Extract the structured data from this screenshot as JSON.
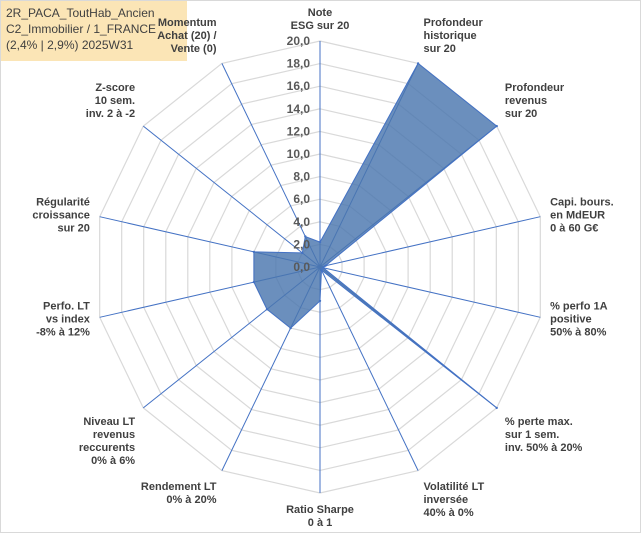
{
  "info_box": {
    "line1": "2R_PACA_ToutHab_Ancien",
    "line2": "C2_Immobilier / 1_FRANCE",
    "line3": "(2,4% | 2,9%) 2025W31"
  },
  "chart_data": {
    "type": "radar",
    "title": "",
    "rmin": 0,
    "rmax": 20,
    "tick_step": 2,
    "tick_labels": [
      "0,0",
      "2,0",
      "4,0",
      "6,0",
      "8,0",
      "10,0",
      "12,0",
      "14,0",
      "16,0",
      "18,0",
      "20,0"
    ],
    "axes": [
      [
        "Note",
        "ESG sur 20"
      ],
      [
        "Profondeur",
        "historique",
        "sur 20"
      ],
      [
        "Profondeur",
        "revenus",
        "sur 20"
      ],
      [
        "Capi. bours.",
        "en MdEUR",
        "0 à 60 G€"
      ],
      [
        "% perfo 1A",
        "positive",
        "50% à 80%"
      ],
      [
        "% perte max.",
        "sur 1 sem.",
        "inv. 50% à 20%"
      ],
      [
        "Volatilité LT",
        "inversée",
        "40% à 0%"
      ],
      [
        "Ratio Sharpe",
        "0 à 1"
      ],
      [
        "Rendement LT",
        "0% à 20%"
      ],
      [
        "Niveau LT",
        "revenus",
        "reccurents",
        "0% à 6%"
      ],
      [
        "Perfo. LT",
        "vs index",
        "-8% à 12%"
      ],
      [
        "Régularité",
        "croissance",
        "sur 20"
      ],
      [
        "Z-score",
        "10 sem.",
        "inv. 2 à -2"
      ],
      [
        "Momentum",
        "Achat (20) /",
        "Vente (0)"
      ]
    ],
    "series": [
      {
        "values": [
          2.2,
          20,
          20,
          0.5,
          0.3,
          20,
          0.3,
          3,
          6,
          6,
          6,
          6,
          2,
          3
        ]
      }
    ],
    "colors": {
      "fill": "#4a76ae",
      "stroke": "#4472c4",
      "grid": "#d9d9d9",
      "axis": "#4472c4"
    }
  }
}
